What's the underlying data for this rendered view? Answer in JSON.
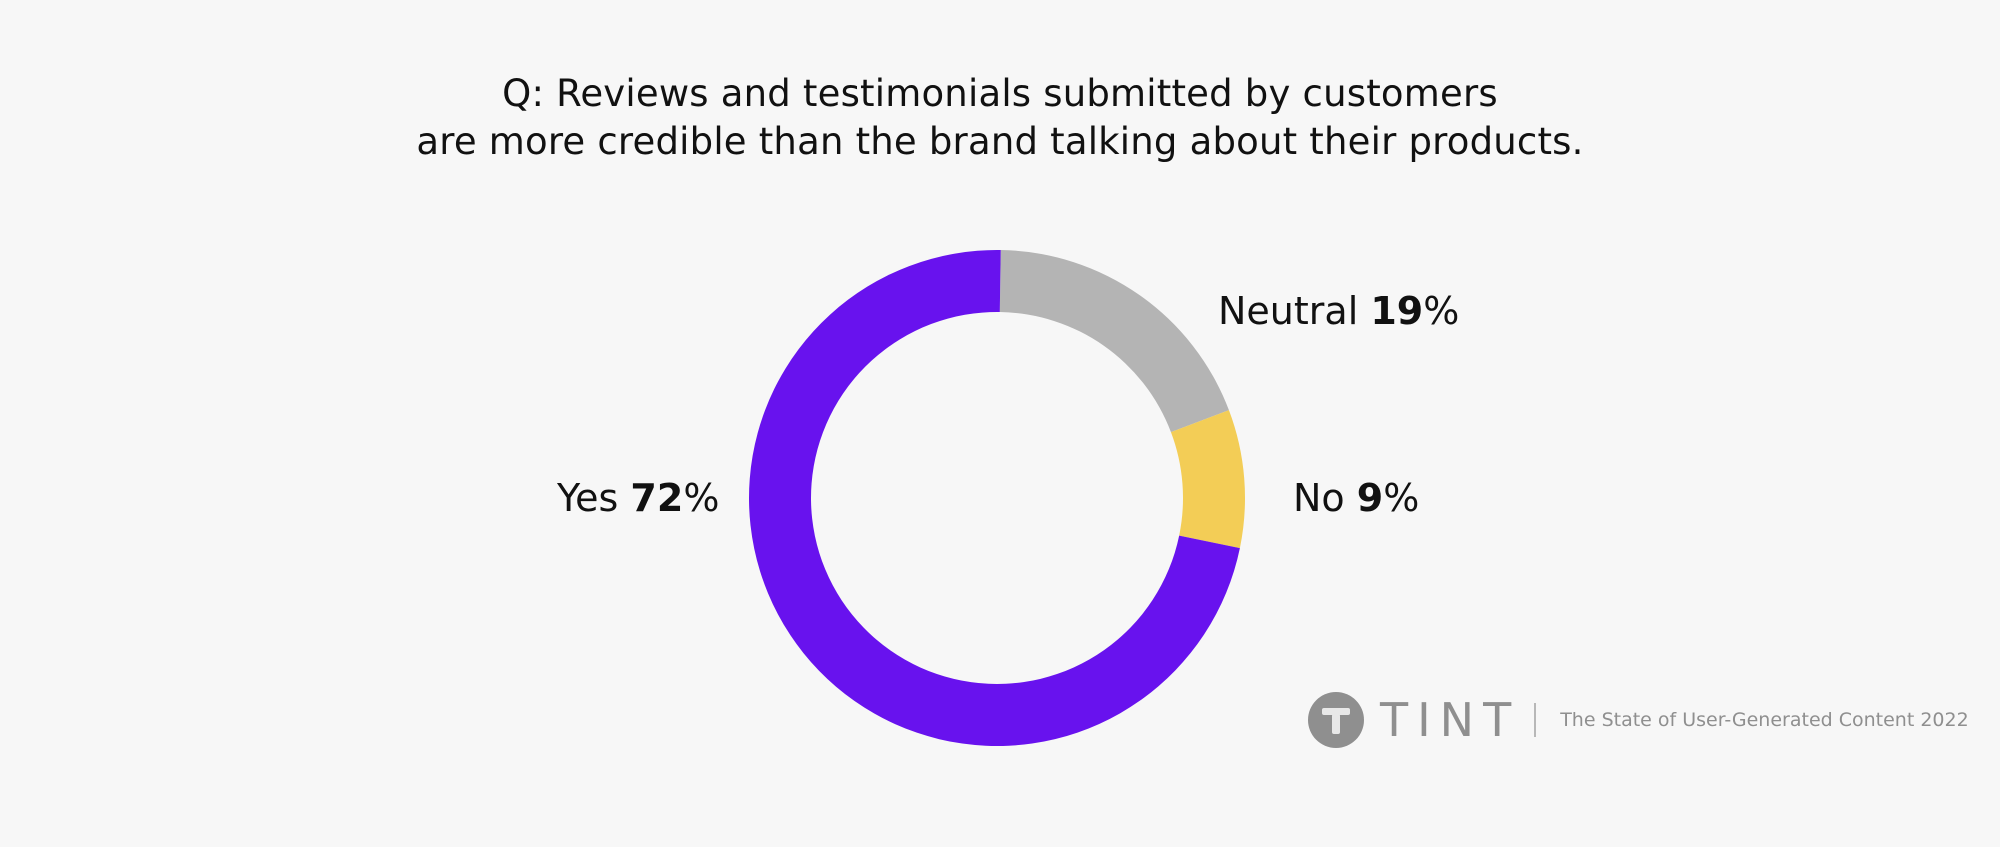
{
  "title_lines": [
    "Q: Reviews and testimonials submitted by customers",
    "are more credible than the brand talking about their products."
  ],
  "chart_data": {
    "type": "pie",
    "variant": "donut",
    "slices": [
      {
        "name": "Yes",
        "value": 72,
        "label": "72",
        "color": "#6812ee"
      },
      {
        "name": "Neutral",
        "value": 19,
        "label": "19",
        "color": "#b4b4b4"
      },
      {
        "name": "No",
        "value": 9,
        "label": "9",
        "color": "#f3cd56"
      }
    ],
    "unit": "%",
    "start": "top, clockwise: Neutral, No, Yes"
  },
  "branding": {
    "wordmark": "TINT",
    "tagline": "The State of User-Generated Content 2022",
    "logo_icon": "tint-circle-t-icon",
    "color": "#8f8f8f"
  }
}
